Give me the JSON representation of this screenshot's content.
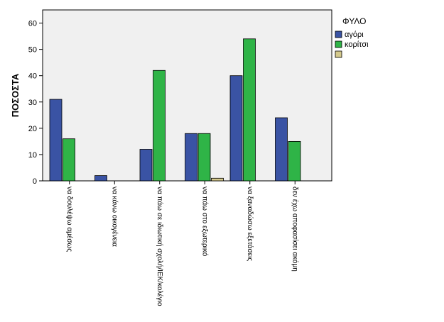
{
  "chart_data": {
    "type": "bar",
    "title": "",
    "xlabel": "",
    "ylabel": "ΠΟΣΟΣΤΑ",
    "ylim": [
      0,
      65
    ],
    "yticks": [
      0,
      10,
      20,
      30,
      40,
      50,
      60
    ],
    "grid": false,
    "legend_position": "right",
    "legend_title": "ΦΥΛΟ",
    "categories": [
      "να δουλέψω αμέσως",
      "να κάνω οικογένεια",
      "να πάω σε ιδιωτική σχολή/ΙΕΚ/κολέγιο",
      "να πάω στο εξωτερικό",
      "να ξαναδώσω εξετάσεις",
      "δεν έχω αποφασίσει ακόμη"
    ],
    "series": [
      {
        "name": "αγόρι",
        "color": "#3a53a4",
        "values": [
          31,
          2,
          12,
          18,
          40,
          24
        ]
      },
      {
        "name": "κορίτσι",
        "color": "#2fb447",
        "values": [
          16,
          0,
          42,
          18,
          54,
          15
        ]
      },
      {
        "name": "",
        "color": "#d4c98c",
        "values": [
          0,
          0,
          0,
          1,
          0,
          0
        ]
      }
    ]
  }
}
